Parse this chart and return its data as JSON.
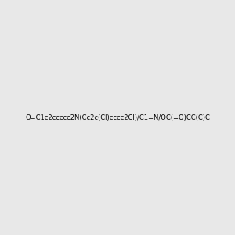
{
  "smiles": "O=C1c2ccccc2N(Cc2c(Cl)cccc2Cl)/C1=N/OC(=O)CC(C)C",
  "image_size": 300,
  "bg_color": "#e8e8e8",
  "title": ""
}
